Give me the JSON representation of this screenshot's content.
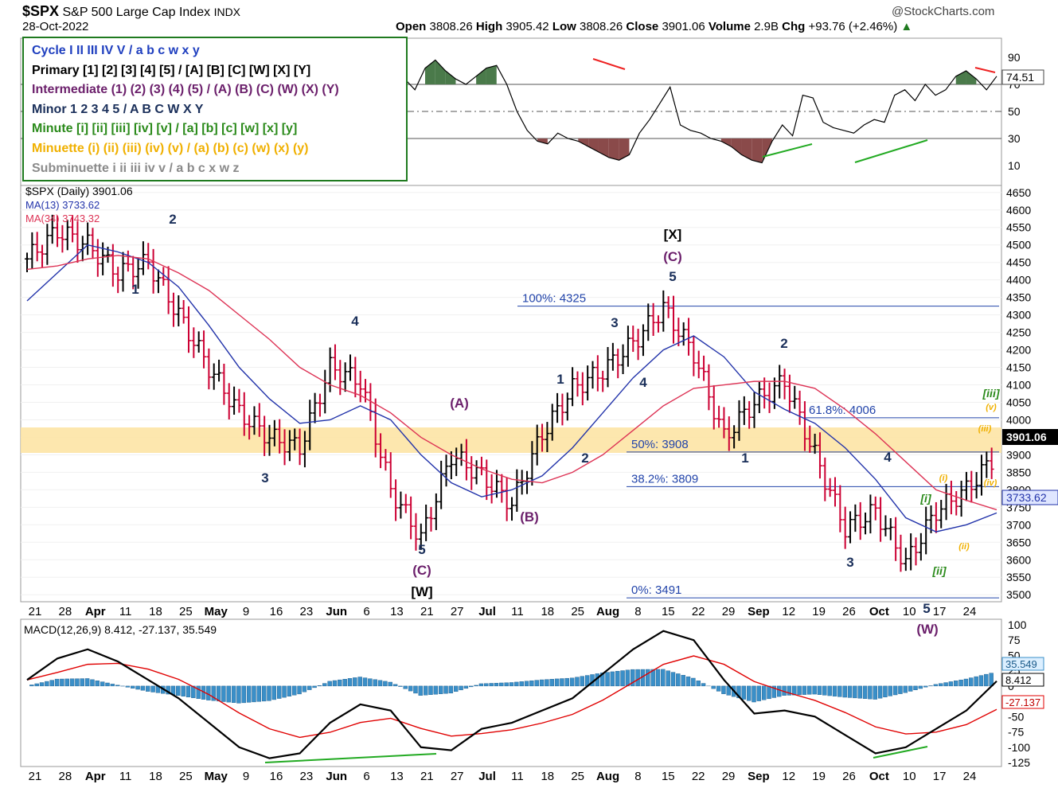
{
  "header": {
    "symbol": "$SPX",
    "name": "S&P 500 Large Cap Index",
    "exchange": "INDX",
    "date": "28-Oct-2022",
    "watermark": "@StockCharts.com",
    "quote": {
      "open_label": "Open",
      "open": "3808.26",
      "high_label": "High",
      "high": "3905.42",
      "low_label": "Low",
      "low": "3808.26",
      "close_label": "Close",
      "close": "3901.06",
      "volume_label": "Volume",
      "volume": "2.9B",
      "chg_label": "Chg",
      "chg": "+93.76 (+2.46%)"
    }
  },
  "wave_legend": [
    {
      "text": "Cycle I II III IV V / a b c w x y",
      "color": "#1f3fbf"
    },
    {
      "text": "Primary [1] [2] [3] [4] [5] / [A] [B] [C] [W] [X] [Y]",
      "color": "#000000"
    },
    {
      "text": "Intermediate (1) (2) (3) (4) (5) / (A) (B) (C) (W) (X) (Y)",
      "color": "#6b1f6b"
    },
    {
      "text": "Minor 1 2 3 4 5 / A B C W X Y",
      "color": "#1a2f5a"
    },
    {
      "text": "Minute [i] [ii] [iii] [iv] [v] / [a] [b] [c] [w] [x] [y]",
      "color": "#2a8a1a"
    },
    {
      "text": "Minuette (i) (ii) (iii) (iv) (v) / (a) (b) (c) (w) (x) (y)",
      "color": "#f0b000"
    },
    {
      "text": "Subminuette i ii iii iv v / a b c x w z",
      "color": "#8a8a8a"
    }
  ],
  "colors": {
    "up_bar": "#000000",
    "down_bar": "#cc0033",
    "ma13": "#2233aa",
    "ma34": "#dd3355",
    "fib_line": "#2244aa",
    "zone": "#fde3a0",
    "macd": "#000000",
    "signal": "#e00000",
    "hist": "#3a8fc8",
    "rsi_pos": "#4a7a4a",
    "rsi_neg": "#8a4a4a",
    "green_line": "#22aa22",
    "red_line": "#ee2222"
  },
  "rsi": {
    "ticks": [
      "90",
      "70",
      "50",
      "30",
      "10"
    ],
    "value_label": "74.51",
    "values": [
      28,
      24,
      38,
      52,
      58,
      42,
      55,
      60,
      48,
      70,
      62,
      56,
      50,
      60,
      66,
      70,
      54,
      68,
      60,
      52,
      62,
      68,
      62,
      58,
      44,
      40,
      48,
      54,
      60,
      72,
      80,
      76,
      74,
      70,
      78,
      82,
      80,
      74,
      66,
      82,
      88,
      80,
      74,
      70,
      76,
      82,
      84,
      70,
      50,
      36,
      28,
      26,
      34,
      30,
      28,
      24,
      20,
      16,
      14,
      18,
      34,
      44,
      56,
      68,
      40,
      36,
      34,
      30,
      28,
      24,
      18,
      14,
      12,
      28,
      40,
      32,
      62,
      60,
      42,
      38,
      36,
      34,
      40,
      44,
      42,
      62,
      66,
      58,
      70,
      62,
      66,
      76,
      80,
      74,
      66,
      76
    ]
  },
  "price_chart": {
    "title": "$SPX (Daily) 3901.06",
    "ma13_label": "MA(13) 3733.62",
    "ma34_label": "MA(34) 3743.32",
    "y_ticks": [
      "4650",
      "4600",
      "4550",
      "4500",
      "4450",
      "4400",
      "4350",
      "4300",
      "4250",
      "4200",
      "4150",
      "4100",
      "4050",
      "4000",
      "3950",
      "3900",
      "3850",
      "3800",
      "3750",
      "3700",
      "3650",
      "3600",
      "3550",
      "3500"
    ],
    "close_tag": "3901.06",
    "ma_tag": "3733.62",
    "fib_labels": {
      "f100": "100%: 4325",
      "f618": "61.8%: 4006",
      "f50": "50%: 3908",
      "f382": "38.2%: 3809",
      "f0": "0%: 3491"
    },
    "wave_labels": [
      {
        "text": "2",
        "color": "#1a2f5a"
      },
      {
        "text": "1",
        "color": "#1a2f5a"
      },
      {
        "text": "3",
        "color": "#1a2f5a"
      },
      {
        "text": "4",
        "color": "#1a2f5a"
      },
      {
        "text": "(A)",
        "color": "#6b1f6b"
      },
      {
        "text": "5",
        "color": "#1a2f5a"
      },
      {
        "text": "(C)",
        "color": "#6b1f6b"
      },
      {
        "text": "[W]",
        "color": "#000000"
      },
      {
        "text": "(B)",
        "color": "#6b1f6b"
      },
      {
        "text": "1",
        "color": "#1a2f5a"
      },
      {
        "text": "2",
        "color": "#1a2f5a"
      },
      {
        "text": "3",
        "color": "#1a2f5a"
      },
      {
        "text": "4",
        "color": "#1a2f5a"
      },
      {
        "text": "[X]",
        "color": "#000000"
      },
      {
        "text": "(C)",
        "color": "#6b1f6b"
      },
      {
        "text": "5",
        "color": "#1a2f5a"
      },
      {
        "text": "1",
        "color": "#1a2f5a"
      },
      {
        "text": "2",
        "color": "#1a2f5a"
      },
      {
        "text": "3",
        "color": "#1a2f5a"
      },
      {
        "text": "4",
        "color": "#1a2f5a"
      },
      {
        "text": "5",
        "color": "#1a2f5a"
      },
      {
        "text": "(W)",
        "color": "#6b1f6b"
      },
      {
        "text": "[i]",
        "color": "#2a8a1a"
      },
      {
        "text": "[ii]",
        "color": "#2a8a1a"
      },
      {
        "text": "[iii]",
        "color": "#2a8a1a"
      },
      {
        "text": "(i)",
        "color": "#f0b000"
      },
      {
        "text": "(ii)",
        "color": "#f0b000"
      },
      {
        "text": "(iii)",
        "color": "#f0b000"
      },
      {
        "text": "(iv)",
        "color": "#f0b000"
      },
      {
        "text": "(v)",
        "color": "#f0b000"
      },
      {
        "text": "(B)",
        "color": "#6b1f6b"
      },
      {
        "text": "Y",
        "color": "#1a2f5a"
      }
    ],
    "x_labels": [
      "21",
      "28",
      "Apr",
      "11",
      "18",
      "25",
      "May",
      "9",
      "16",
      "23",
      "Jun",
      "6",
      "13",
      "21",
      "27",
      "Jul",
      "11",
      "18",
      "25",
      "Aug",
      "8",
      "15",
      "22",
      "29",
      "Sep",
      "12",
      "19",
      "26",
      "Oct",
      "10",
      "17",
      "24"
    ]
  },
  "chart_data": {
    "type": "line",
    "title": "$SPX (Daily) 3901.06",
    "x": [
      "Mar 21",
      "Mar 28",
      "Apr 4",
      "Apr 11",
      "Apr 18",
      "Apr 25",
      "May 2",
      "May 9",
      "May 16",
      "May 23",
      "May 31",
      "Jun 6",
      "Jun 13",
      "Jun 21",
      "Jun 27",
      "Jul 5",
      "Jul 11",
      "Jul 18",
      "Jul 25",
      "Aug 1",
      "Aug 8",
      "Aug 15",
      "Aug 22",
      "Aug 29",
      "Sep 6",
      "Sep 12",
      "Sep 19",
      "Sep 26",
      "Oct 3",
      "Oct 10",
      "Oct 17",
      "Oct 24",
      "Oct 28"
    ],
    "series": [
      {
        "name": "$SPX",
        "values": [
          4460,
          4540,
          4500,
          4420,
          4450,
          4300,
          4150,
          4020,
          3950,
          3920,
          4150,
          4110,
          3800,
          3660,
          3900,
          3840,
          3760,
          3960,
          4090,
          4140,
          4220,
          4320,
          4190,
          3950,
          4050,
          4110,
          3900,
          3690,
          3740,
          3590,
          3740,
          3800,
          3901
        ]
      },
      {
        "name": "MA(13)",
        "values": [
          4340,
          4420,
          4500,
          4480,
          4450,
          4380,
          4270,
          4150,
          4060,
          3990,
          4000,
          4040,
          4000,
          3900,
          3820,
          3780,
          3800,
          3840,
          3920,
          4020,
          4120,
          4200,
          4240,
          4180,
          4080,
          4030,
          3990,
          3920,
          3830,
          3720,
          3680,
          3700,
          3734
        ]
      },
      {
        "name": "MA(34)",
        "values": [
          4430,
          4440,
          4460,
          4470,
          4460,
          4420,
          4370,
          4300,
          4230,
          4150,
          4100,
          4070,
          4020,
          3950,
          3900,
          3860,
          3830,
          3820,
          3850,
          3900,
          3970,
          4040,
          4090,
          4100,
          4110,
          4110,
          4090,
          4030,
          3960,
          3880,
          3800,
          3770,
          3743
        ]
      }
    ],
    "ylim": [
      3480,
      4670
    ],
    "fib_levels": {
      "100%": 4325,
      "61.8%": 4006,
      "50%": 3908,
      "38.2%": 3809,
      "0%": 3491
    },
    "macd": {
      "label": "MACD(12,26,9) 8.412, -27.137, 35.549",
      "macd": 8.412,
      "signal": -27.137,
      "histogram": 35.549,
      "y_ticks": [
        "100",
        "75",
        "50",
        "25",
        "0",
        "-25",
        "-50",
        "-75",
        "-100",
        "-125"
      ],
      "macd_values": [
        10,
        45,
        60,
        40,
        10,
        -20,
        -60,
        -100,
        -118,
        -110,
        -60,
        -30,
        -40,
        -100,
        -105,
        -70,
        -60,
        -40,
        -20,
        20,
        60,
        90,
        75,
        10,
        -45,
        -40,
        -50,
        -80,
        -110,
        -100,
        -70,
        -40,
        8
      ]
    },
    "rsi_value": 74.51
  },
  "macd_panel": {
    "label": "MACD(12,26,9) 8.412, -27.137, 35.549",
    "y_ticks": [
      "100",
      "75",
      "50",
      "25",
      "0",
      "-25",
      "-50",
      "-75",
      "-100",
      "-125"
    ],
    "tags": [
      "35.549",
      "8.412",
      "-27.137"
    ]
  }
}
